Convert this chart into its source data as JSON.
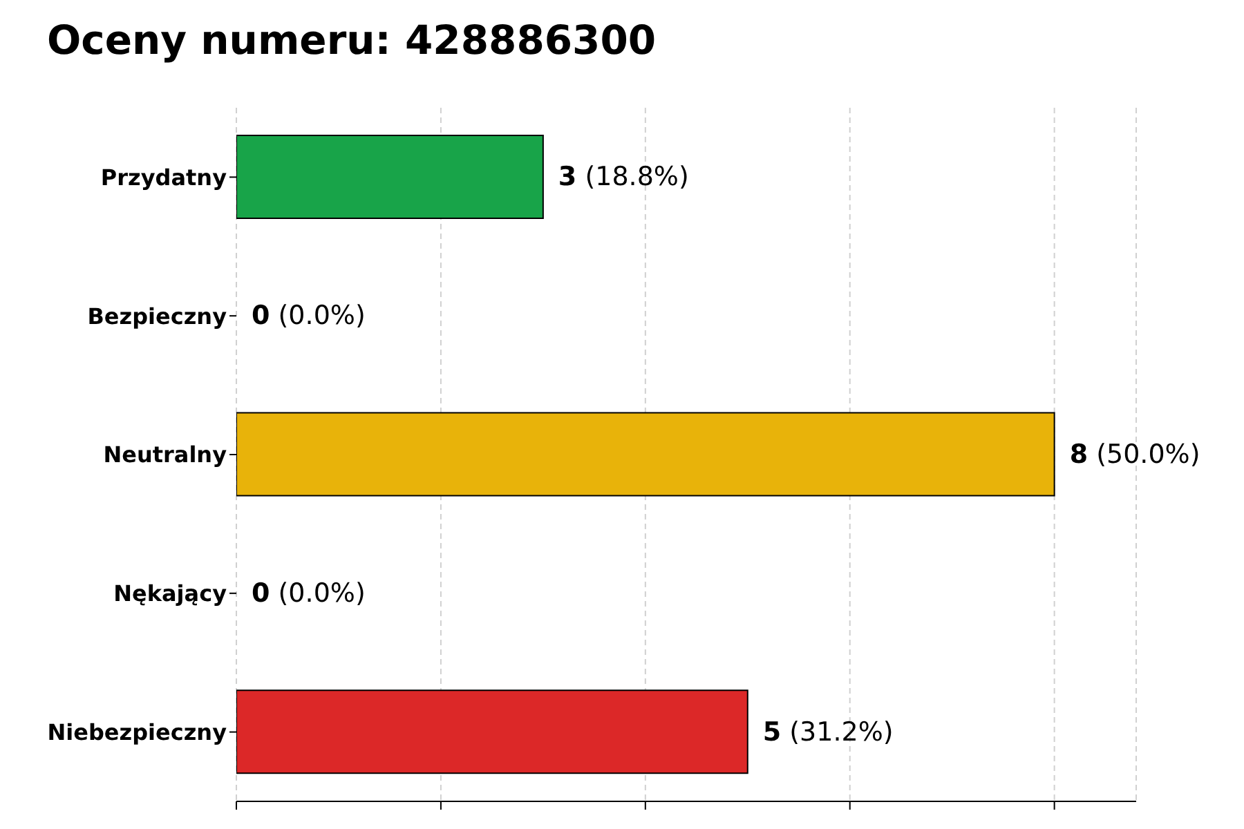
{
  "chart_data": {
    "type": "bar",
    "orientation": "horizontal",
    "title": "Oceny numeru: 428886300",
    "categories": [
      "Przydatny",
      "Bezpieczny",
      "Neutralny",
      "Nękający",
      "Niebezpieczny"
    ],
    "values": [
      3,
      0,
      8,
      0,
      5
    ],
    "colors": [
      "#18a449",
      "#808080",
      "#e8b30a",
      "#808080",
      "#dc2828"
    ],
    "value_labels": [
      "3 (18.8%)",
      "0 (0.0%)",
      "8 (50.0%)",
      "0 (0.0%)",
      "5 (31.2%)"
    ],
    "xlim": [
      0,
      8.8
    ],
    "xticks": [
      {
        "value": 0,
        "label": null
      },
      {
        "value": 2,
        "label": null
      },
      {
        "value": 4,
        "label": null
      },
      {
        "value": 6,
        "label": null
      },
      {
        "value": 8,
        "label": null
      }
    ],
    "tick_labels": "y",
    "grid": "x",
    "line_style": "dashed"
  }
}
